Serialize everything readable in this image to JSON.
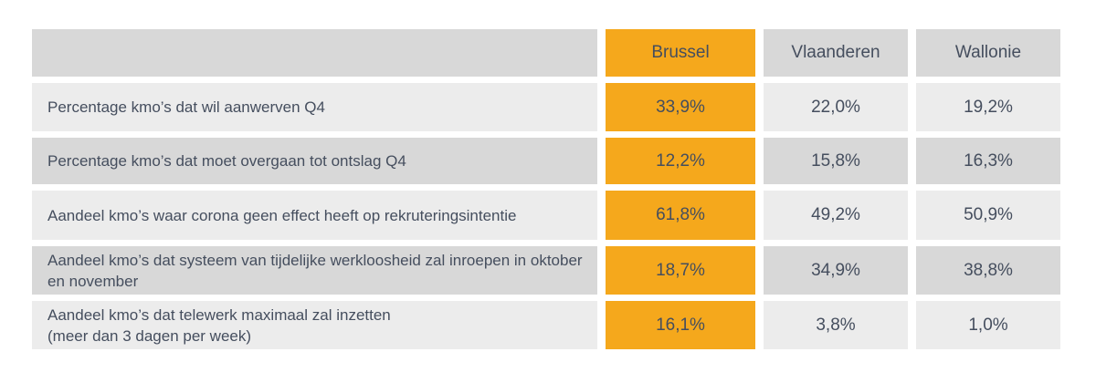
{
  "chart_data": {
    "type": "table",
    "columns": [
      "Brussel",
      "Vlaanderen",
      "Wallonie"
    ],
    "highlighted_column": "Brussel",
    "rows": [
      {
        "label": "Percentage kmo’s dat wil aanwerven Q4",
        "values": [
          "33,9%",
          "22,0%",
          "19,2%"
        ]
      },
      {
        "label": "Percentage kmo’s dat moet overgaan tot ontslag Q4",
        "values": [
          "12,2%",
          "15,8%",
          "16,3%"
        ]
      },
      {
        "label": "Aandeel kmo’s waar corona geen effect heeft op rekruteringsintentie",
        "values": [
          "61,8%",
          "49,2%",
          "50,9%"
        ]
      },
      {
        "label": "Aandeel kmo’s dat systeem van tijdelijke werkloosheid zal inroepen in oktober en november",
        "values": [
          "18,7%",
          "34,9%",
          "38,8%"
        ]
      },
      {
        "label": "Aandeel kmo’s dat telewerk maximaal zal inzetten\n(meer dan 3 dagen per week)",
        "values": [
          "16,1%",
          "3,8%",
          "1,0%"
        ]
      }
    ],
    "colors": {
      "highlight": "#F5A81C",
      "dark_band": "#D8D8D8",
      "light_band": "#ECECEC",
      "text": "#454E5E",
      "background": "#FFFFFF"
    },
    "legend_position": "none",
    "grid": false
  }
}
